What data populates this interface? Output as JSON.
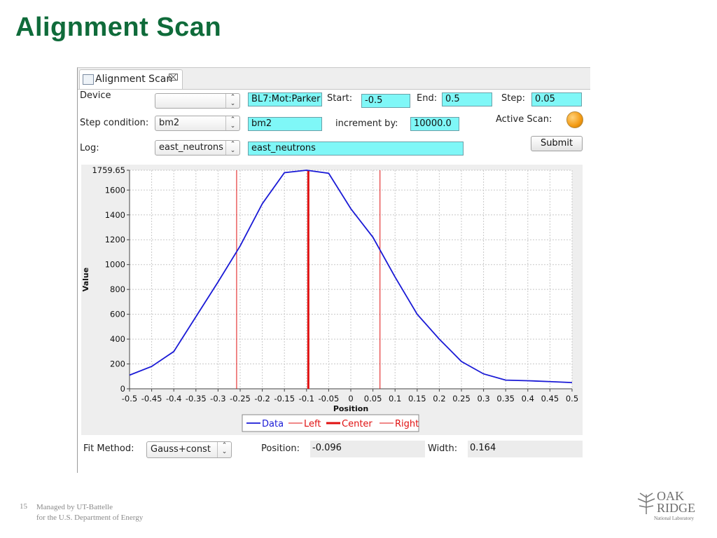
{
  "slide": {
    "title": "Alignment Scan",
    "page_number": "15",
    "footer_line1": "Managed by UT-Battelle",
    "footer_line2": "for the U.S. Department of Energy",
    "logo": {
      "line1": "OAK",
      "line2": "RIDGE",
      "line3": "National Laboratory"
    }
  },
  "window": {
    "tab_label": "Alignment Scan",
    "tab_close": "⌧"
  },
  "form": {
    "device_label": "Device",
    "device_value": "",
    "device_pv": "BL7:Mot:Parker",
    "start_label": "Start:",
    "start_value": "-0.5",
    "end_label": "End:",
    "end_value": "0.5",
    "step_label": "Step:",
    "step_value": "0.05",
    "step_condition_label": "Step condition:",
    "step_condition_value": "bm2",
    "step_condition_pv": "bm2",
    "increment_label": "increment by:",
    "increment_value": "10000.0",
    "active_scan_label": "Active Scan:",
    "log_label": "Log:",
    "log_value": "east_neutrons",
    "log_pv": "east_neutrons",
    "submit_label": "Submit"
  },
  "fit": {
    "method_label": "Fit Method:",
    "method_value": "Gauss+const",
    "position_label": "Position:",
    "position_value": "-0.096",
    "width_label": "Width:",
    "width_value": "0.164"
  },
  "colors": {
    "data": "#1a1ad6",
    "markers": "#e01010",
    "field": "#7ff7f7",
    "title": "#0f6b3a"
  },
  "chart_data": {
    "type": "line",
    "xlabel": "Position",
    "ylabel": "Value",
    "xlim": [
      -0.5,
      0.5
    ],
    "ylim": [
      0,
      1759.65
    ],
    "x_ticks": [
      "-0.5",
      "-0.45",
      "-0.4",
      "-0.35",
      "-0.3",
      "-0.25",
      "-0.2",
      "-0.15",
      "-0.1",
      "-0.05",
      "0",
      "0.05",
      "0.1",
      "0.15",
      "0.2",
      "0.25",
      "0.3",
      "0.35",
      "0.4",
      "0.45",
      "0.5"
    ],
    "y_ticks": [
      "0",
      "200",
      "400",
      "600",
      "800",
      "1000",
      "1200",
      "1400",
      "1600",
      "1759.65"
    ],
    "grid": true,
    "legend": [
      "Data",
      "Left",
      "Center",
      "Right"
    ],
    "legend_position": "bottom",
    "series": [
      {
        "name": "Data",
        "x": [
          -0.5,
          -0.45,
          -0.4,
          -0.35,
          -0.3,
          -0.25,
          -0.2,
          -0.15,
          -0.1,
          -0.05,
          0,
          0.05,
          0.1,
          0.15,
          0.2,
          0.25,
          0.3,
          0.35,
          0.4,
          0.45,
          0.5
        ],
        "y": [
          110,
          180,
          300,
          580,
          860,
          1150,
          1490,
          1740,
          1759.65,
          1735,
          1450,
          1220,
          900,
          600,
          400,
          220,
          120,
          70,
          65,
          58,
          50
        ]
      }
    ],
    "markers": [
      {
        "name": "Left",
        "x": -0.258
      },
      {
        "name": "Center",
        "x": -0.096
      },
      {
        "name": "Right",
        "x": 0.066
      }
    ]
  }
}
